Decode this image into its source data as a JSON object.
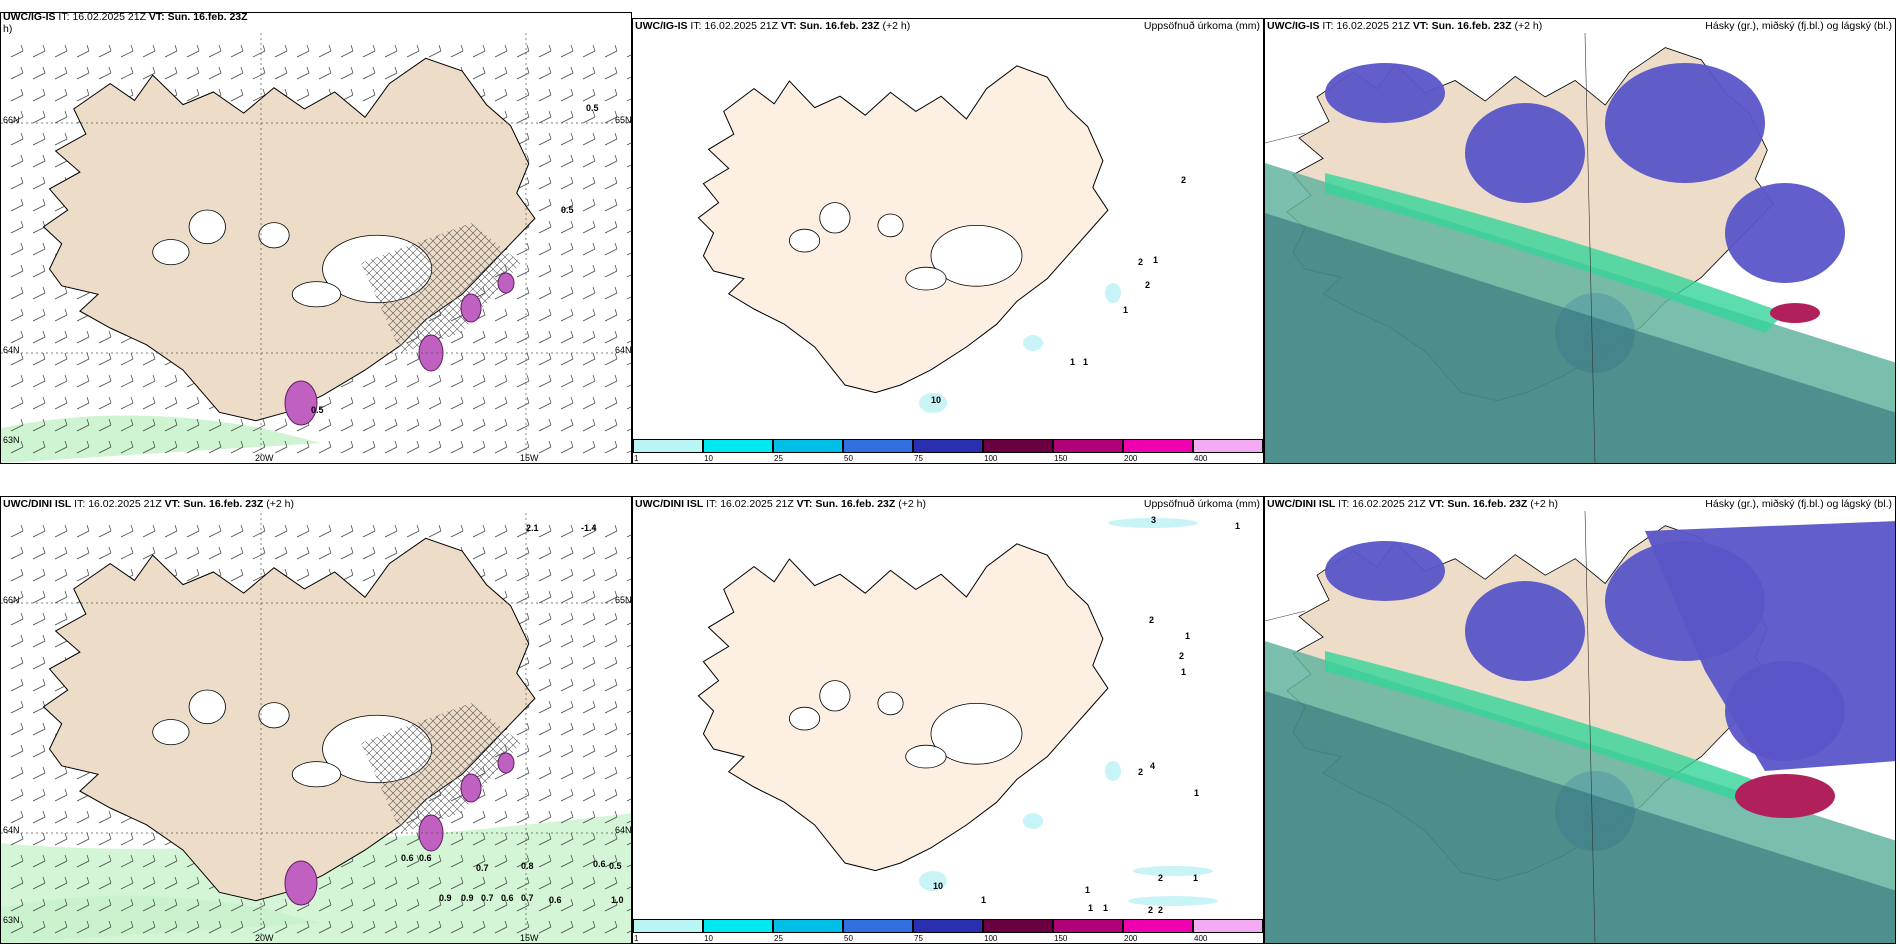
{
  "rows": [
    {
      "model": "UWC/IG-IS",
      "it_label": "IT:",
      "it": "16.02.2025 21Z",
      "vt_label": "VT:",
      "vt": "Sun. 16.feb. 23Z",
      "lead": "(+2 h)",
      "lead_wrapped_h": "h)"
    },
    {
      "model": "UWC/DINI ISL",
      "it_label": "IT:",
      "it": "16.02.2025 21Z",
      "vt_label": "VT:",
      "vt": "Sun. 16.feb. 23Z",
      "lead": "(+2 h)"
    }
  ],
  "precip_title": "Uppsöfnuð úrkoma (mm)",
  "cloud_title": "Hásky (gr.), miðský (fj.bl.) og lágský (bl.)",
  "axes": {
    "lon": [
      "20W",
      "15W"
    ],
    "lat": [
      "66N",
      "64N",
      "63N"
    ],
    "lat_right": [
      "65N",
      "64N"
    ]
  },
  "colorbar": {
    "ticks": [
      "1",
      "10",
      "25",
      "50",
      "75",
      "100",
      "150",
      "200",
      "400"
    ],
    "colors": [
      "#b8f5f5",
      "#00e8f0",
      "#00bfe6",
      "#2f6fe0",
      "#2a2fb0",
      "#6a0040",
      "#b0007a",
      "#f000b0",
      "#f2aaf2"
    ]
  },
  "precip_labels_top": [
    "2",
    "2",
    "1",
    "2",
    "1",
    "1",
    "1",
    "10"
  ],
  "precip_labels_bottom": [
    "3",
    "1",
    "2",
    "1",
    "2",
    "1",
    "2",
    "4",
    "1",
    "10",
    "1",
    "1",
    "2",
    "1",
    "1",
    "1",
    "2",
    "2"
  ],
  "wind_labels_top": [
    "0.5",
    "0.5",
    "0.5"
  ],
  "wind_labels_bottom": [
    "2.1",
    "-1.4",
    "0.6",
    "0.6",
    "0.7",
    "0.8",
    "0.6",
    "0.5",
    "0.9",
    "0.9",
    "0.7",
    "0.6",
    "0.7",
    "0.6",
    "1.0"
  ],
  "colors": {
    "land": "#eddcc8",
    "land_precip": "#fdf0e2",
    "precip_light": "#c8f4f8",
    "wind_green": "#c9f3cc",
    "cloud_high": "#5a55c8",
    "cloud_mid": "#63b4a0",
    "cloud_low": "#2a6a74",
    "cloud_red": "#b0205a"
  }
}
